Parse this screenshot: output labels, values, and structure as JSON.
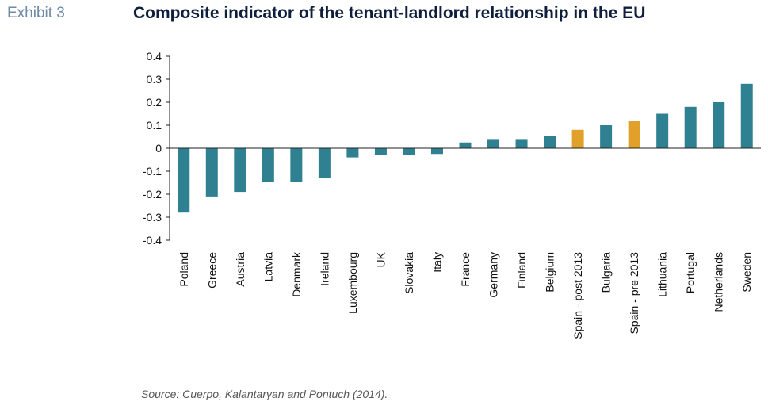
{
  "header": {
    "exhibit_label": "Exhibit 3",
    "title": "Composite indicator of the tenant-landlord relationship in the EU"
  },
  "footer": {
    "source": "Source: Cuerpo, Kalantaryan and Pontuch (2014)."
  },
  "colors": {
    "bar": "#2f8191",
    "highlight": "#e0a02a",
    "axis": "#222222"
  },
  "chart_data": {
    "type": "bar",
    "title": "Composite indicator of the tenant-landlord relationship in the EU",
    "xlabel": "",
    "ylabel": "",
    "ylim": [
      -0.4,
      0.4
    ],
    "yticks": [
      0.4,
      0.3,
      0.2,
      0.1,
      0,
      -0.1,
      -0.2,
      -0.3,
      -0.4
    ],
    "ytick_labels": [
      "0.4",
      "0.3",
      "0.2",
      "0.1",
      "0",
      "-0.1",
      "-0.2",
      "-0.3",
      "-0.4"
    ],
    "categories": [
      "Poland",
      "Greece",
      "Austria",
      "Latvia",
      "Denmark",
      "Ireland",
      "Luxembourg",
      "UK",
      "Slovakia",
      "Italy",
      "France",
      "Germany",
      "Finland",
      "Belgium",
      "Spain - post 2013",
      "Bulgaria",
      "Spain - pre 2013",
      "Lithuania",
      "Portugal",
      "Netherlands",
      "Sweden"
    ],
    "values": [
      -0.28,
      -0.21,
      -0.19,
      -0.145,
      -0.145,
      -0.13,
      -0.04,
      -0.03,
      -0.03,
      -0.025,
      0.025,
      0.04,
      0.04,
      0.055,
      0.08,
      0.1,
      0.12,
      0.15,
      0.18,
      0.2,
      0.28
    ],
    "highlighted": [
      "Spain - post 2013",
      "Spain - pre 2013"
    ],
    "grid": false,
    "legend": "none"
  }
}
